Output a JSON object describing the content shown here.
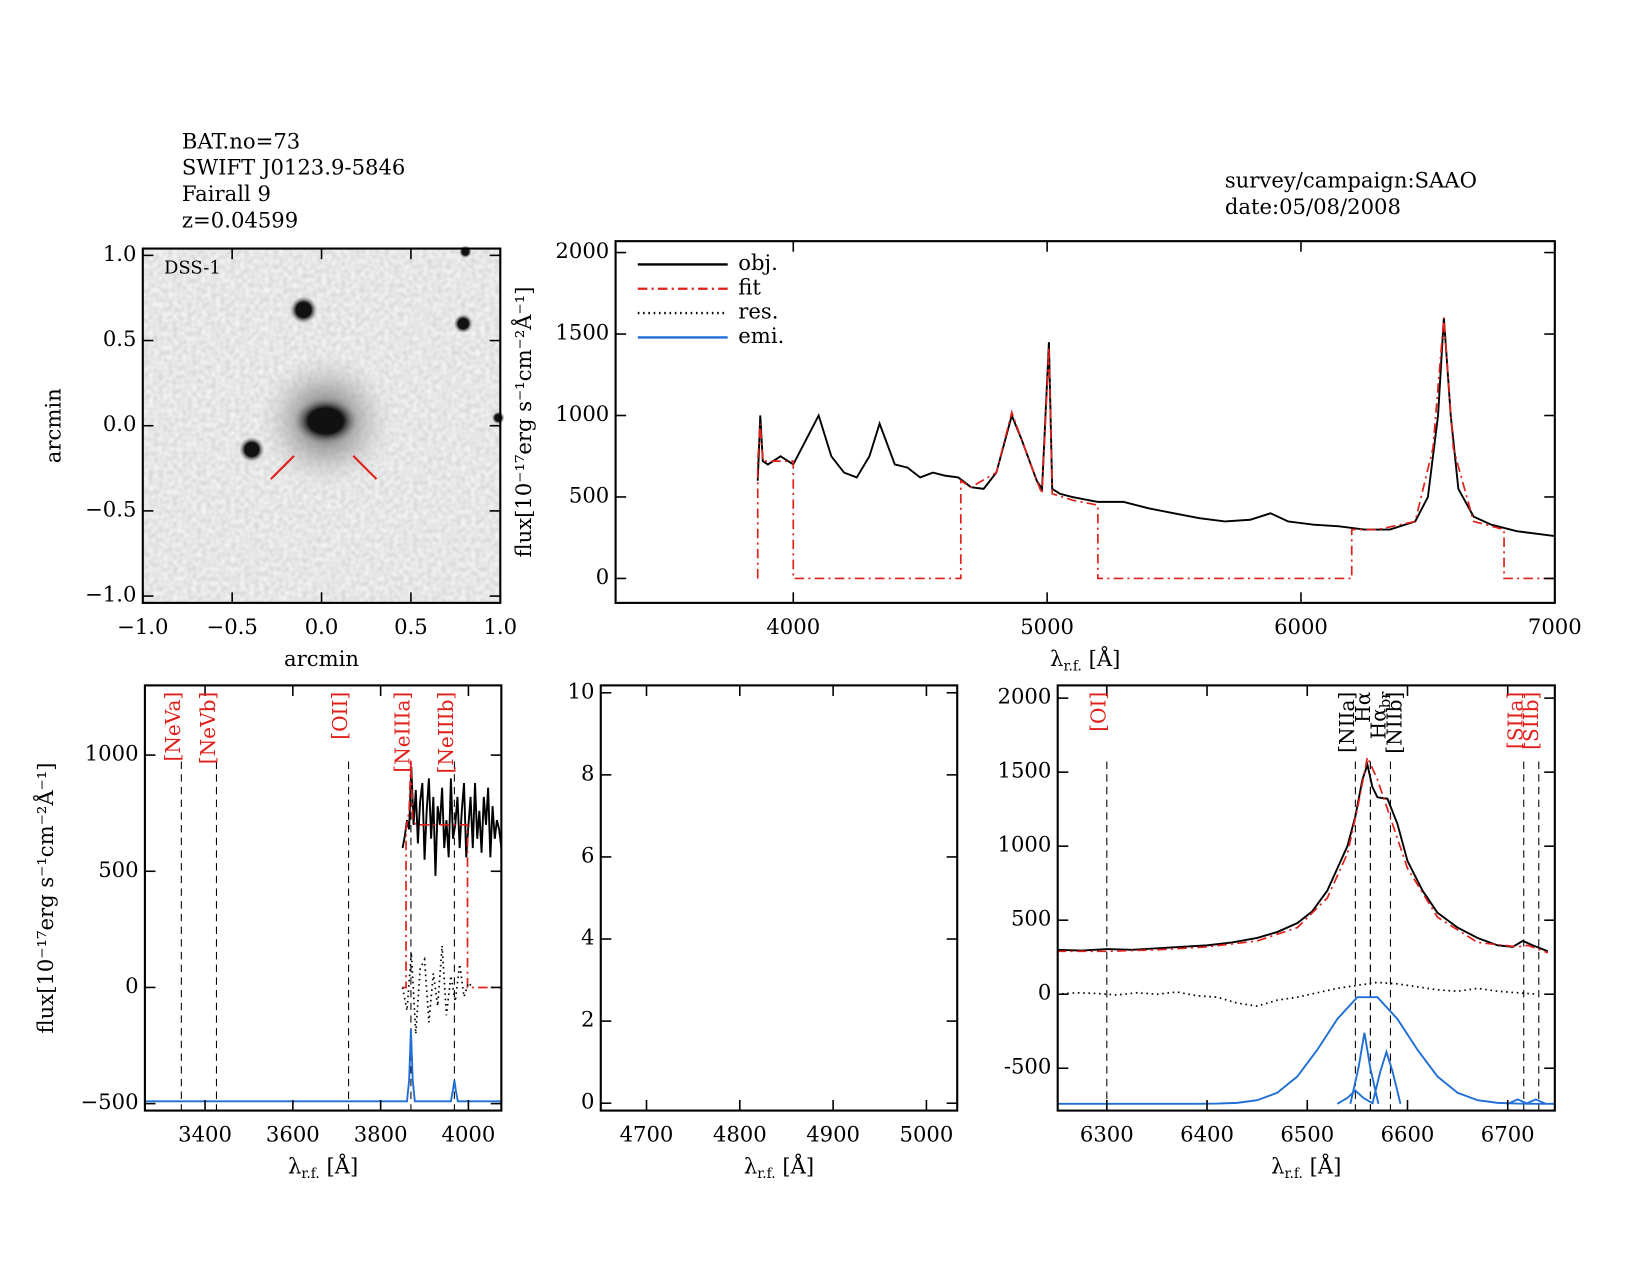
{
  "header": {
    "lines": [
      "BAT.no=73",
      "SWIFT J0123.9-5846",
      "Fairall 9",
      "z=0.04599"
    ],
    "survey": "survey/campaign:SAAO",
    "date": "date:05/08/2008"
  },
  "chart_data": [
    {
      "type": "image",
      "label": "DSS-1",
      "x_label": "arcmin",
      "y_label": "arcmin",
      "xlim": [
        -1,
        1
      ],
      "ylim": [
        -1.04,
        1.04
      ],
      "xticks": [
        {
          "value": -1,
          "label": "−1.0"
        },
        {
          "value": -0.5,
          "label": "−0.5"
        },
        {
          "value": 0,
          "label": "0.0"
        },
        {
          "value": 0.5,
          "label": "0.5"
        },
        {
          "value": 1,
          "label": "1.0"
        }
      ],
      "yticks": [
        {
          "value": -1,
          "label": "−1.0"
        },
        {
          "value": -0.5,
          "label": "−0.5"
        },
        {
          "value": 0,
          "label": "0.0"
        },
        {
          "value": 0.5,
          "label": "0.5"
        },
        {
          "value": 1,
          "label": "1.0"
        }
      ]
    },
    {
      "type": "line",
      "y_label": "flux[10⁻¹⁷erg s⁻¹cm⁻²Å⁻¹]",
      "x_label": "λ",
      "x_label_sub": "r.f.",
      "x_label_unit": "[Å]",
      "xlim": [
        3300,
        7000
      ],
      "ylim": [
        -150,
        2070
      ],
      "xticks": [
        4000,
        5000,
        6000,
        7000
      ],
      "yticks": [
        0,
        500,
        1000,
        1500,
        2000
      ],
      "legend": [
        {
          "name": "obj.",
          "color": "#000000",
          "dash": "solid"
        },
        {
          "name": "fit",
          "color": "#e0201b",
          "dash": "dashdot"
        },
        {
          "name": "res.",
          "color": "#000000",
          "dash": "dot"
        },
        {
          "name": "emi.",
          "color": "#1f6fd6",
          "dash": "solid"
        }
      ],
      "series": [
        {
          "color": "#000000",
          "dash": "solid",
          "x": [
            3860,
            3870,
            3880,
            3900,
            3950,
            4000,
            4050,
            4100,
            4150,
            4200,
            4250,
            4300,
            4340,
            4400,
            4450,
            4500,
            4550,
            4600,
            4650,
            4700,
            4750,
            4800,
            4861,
            4900,
            4959,
            4980,
            5007,
            5020,
            5050,
            5100,
            5200,
            5300,
            5400,
            5500,
            5600,
            5700,
            5800,
            5880,
            5950,
            6050,
            6150,
            6250,
            6350,
            6450,
            6500,
            6540,
            6563,
            6590,
            6620,
            6680,
            6750,
            6850,
            6950,
            7000
          ],
          "values": [
            600,
            1000,
            720,
            700,
            750,
            700,
            850,
            1000,
            750,
            650,
            620,
            750,
            950,
            700,
            680,
            620,
            650,
            630,
            620,
            560,
            550,
            650,
            1000,
            850,
            600,
            550,
            1450,
            550,
            520,
            500,
            470,
            470,
            430,
            400,
            370,
            350,
            360,
            400,
            350,
            330,
            320,
            300,
            300,
            350,
            500,
            1000,
            1600,
            1000,
            550,
            380,
            330,
            290,
            270,
            260
          ]
        },
        {
          "color": "#e0201b",
          "dash": "dashdot",
          "x": [
            3860,
            3860,
            3870,
            3880,
            4000,
            4000,
            4660,
            4660,
            4700,
            4800,
            4861,
            4900,
            4959,
            4980,
            5007,
            5020,
            5100,
            5200,
            5200,
            6200,
            6200,
            6300,
            6450,
            6520,
            6563,
            6600,
            6680,
            6800,
            6800,
            7000
          ],
          "values": [
            0,
            720,
            950,
            720,
            720,
            0,
            0,
            600,
            560,
            650,
            1020,
            850,
            600,
            520,
            1420,
            520,
            480,
            450,
            0,
            0,
            300,
            300,
            350,
            800,
            1600,
            800,
            350,
            300,
            0,
            0
          ]
        }
      ]
    },
    {
      "type": "line",
      "y_label": "flux[10⁻¹⁷erg s⁻¹cm⁻²Å⁻¹]",
      "x_label": "λ",
      "x_label_sub": "r.f.",
      "x_label_unit": "[Å]",
      "xlim": [
        3263,
        4075
      ],
      "ylim": [
        -530,
        1300
      ],
      "xticks": [
        3400,
        3600,
        3800,
        4000
      ],
      "yticks": [
        {
          "value": -500,
          "label": "−500"
        },
        0,
        500,
        1000
      ],
      "lines": [
        {
          "label": "[NeVa]",
          "x": 3346,
          "color": "#e0201b"
        },
        {
          "label": "[NeVb]",
          "x": 3426,
          "color": "#e0201b"
        },
        {
          "label": "[OII]",
          "x": 3727,
          "color": "#e0201b"
        },
        {
          "label": "[NeIIIa]",
          "x": 3869,
          "color": "#e0201b"
        },
        {
          "label": "[NeIIIb]",
          "x": 3968,
          "color": "#e0201b"
        }
      ],
      "series": [
        {
          "color": "#000000",
          "dash": "solid",
          "x": [
            3850,
            3855,
            3860,
            3865,
            3870,
            3875,
            3880,
            3885,
            3890,
            3895,
            3900,
            3905,
            3910,
            3915,
            3920,
            3925,
            3930,
            3935,
            3940,
            3945,
            3950,
            3955,
            3960,
            3965,
            3970,
            3975,
            3980,
            3985,
            3990,
            3995,
            4000,
            4005,
            4010,
            4015,
            4020,
            4025,
            4030,
            4035,
            4040,
            4045,
            4050,
            4055,
            4060,
            4065,
            4070,
            4075
          ],
          "values": [
            600,
            650,
            720,
            680,
            950,
            700,
            850,
            620,
            800,
            880,
            550,
            760,
            900,
            640,
            820,
            480,
            780,
            700,
            860,
            600,
            720,
            560,
            900,
            640,
            700,
            820,
            600,
            760,
            880,
            560,
            700,
            820,
            600,
            880,
            640,
            760,
            580,
            820,
            700,
            860,
            560,
            780,
            640,
            720,
            680,
            600
          ]
        },
        {
          "color": "#e0201b",
          "dash": "dashdot",
          "x": [
            3850,
            3858,
            3858,
            3865,
            3869,
            3873,
            3880,
            3990,
            3998,
            3998,
            4075
          ],
          "values": [
            0,
            0,
            680,
            760,
            980,
            720,
            700,
            700,
            700,
            0,
            0
          ]
        },
        {
          "color": "#000000",
          "dash": "dot",
          "x": [
            3850,
            3860,
            3870,
            3880,
            3890,
            3900,
            3910,
            3920,
            3930,
            3940,
            3950,
            3960,
            3970,
            3980,
            3990,
            4000,
            4010
          ],
          "values": [
            0,
            -100,
            150,
            -200,
            80,
            120,
            -150,
            60,
            -80,
            180,
            -120,
            50,
            -60,
            100,
            -40,
            20,
            0
          ]
        },
        {
          "color": "#1f6fd6",
          "dash": "solid",
          "x": [
            3263,
            3860,
            3865,
            3869,
            3873,
            3878,
            3960,
            3965,
            3968,
            3971,
            3976,
            4075
          ],
          "values": [
            -490,
            -490,
            -400,
            -180,
            -400,
            -490,
            -490,
            -440,
            -400,
            -440,
            -490,
            -490
          ]
        }
      ]
    },
    {
      "type": "line",
      "x_label": "λ",
      "x_label_sub": "r.f.",
      "x_label_unit": "[Å]",
      "xlim": [
        4651,
        5033
      ],
      "ylim": [
        -0.18,
        10.18
      ],
      "xticks": [
        4700,
        4800,
        4900,
        5000
      ],
      "yticks": [
        0,
        2,
        4,
        6,
        8,
        10
      ]
    },
    {
      "type": "line",
      "x_label": "λ",
      "x_label_sub": "r.f.",
      "x_label_unit": "[Å]",
      "xlim": [
        6251,
        6747
      ],
      "ylim": [
        -786,
        2086
      ],
      "xticks": [
        6300,
        6400,
        6500,
        6600,
        6700
      ],
      "yticks": [
        {
          "value": -500,
          "label": "-500"
        },
        0,
        500,
        1000,
        1500,
        2000
      ],
      "lines": [
        {
          "label": "[OI]",
          "x": 6300,
          "color": "#e0201b"
        },
        {
          "label": "[NIIa]",
          "x": 6548,
          "color": "#000000"
        },
        {
          "label": "Hα",
          "x": 6563,
          "color": "#000000"
        },
        {
          "label": "Hα",
          "sub": "br",
          "x": 6563,
          "color": "#000000"
        },
        {
          "label": "[NIIb]",
          "x": 6583,
          "color": "#000000"
        },
        {
          "label": "[SIIa]",
          "x": 6716,
          "color": "#e0201b"
        },
        {
          "label": "[SIIb]",
          "x": 6731,
          "color": "#e0201b"
        }
      ],
      "series": [
        {
          "color": "#000000",
          "dash": "solid",
          "x": [
            6250,
            6275,
            6300,
            6325,
            6350,
            6375,
            6400,
            6425,
            6450,
            6470,
            6490,
            6505,
            6520,
            6530,
            6540,
            6548,
            6555,
            6560,
            6565,
            6570,
            6580,
            6590,
            6600,
            6615,
            6630,
            6650,
            6670,
            6690,
            6705,
            6715,
            6725,
            6740
          ],
          "values": [
            300,
            295,
            305,
            300,
            310,
            320,
            330,
            350,
            380,
            420,
            480,
            560,
            700,
            850,
            1000,
            1200,
            1450,
            1550,
            1400,
            1330,
            1320,
            1150,
            900,
            700,
            550,
            450,
            380,
            330,
            320,
            360,
            330,
            290
          ]
        },
        {
          "color": "#e0201b",
          "dash": "dashdot",
          "x": [
            6250,
            6300,
            6350,
            6400,
            6450,
            6490,
            6520,
            6540,
            6550,
            6560,
            6570,
            6580,
            6600,
            6630,
            6670,
            6710,
            6720,
            6740
          ],
          "values": [
            290,
            290,
            300,
            320,
            360,
            450,
            650,
            950,
            1250,
            1600,
            1450,
            1250,
            850,
            520,
            350,
            320,
            330,
            280
          ]
        },
        {
          "color": "#000000",
          "dash": "dot",
          "x": [
            6250,
            6270,
            6290,
            6310,
            6330,
            6350,
            6370,
            6390,
            6410,
            6430,
            6450,
            6470,
            6490,
            6510,
            6530,
            6550,
            6570,
            6590,
            6610,
            6630,
            6650,
            6670,
            6690,
            6710,
            6730
          ],
          "values": [
            0,
            10,
            5,
            -5,
            10,
            0,
            15,
            -10,
            -20,
            -60,
            -80,
            -40,
            -20,
            10,
            40,
            60,
            80,
            70,
            50,
            30,
            20,
            40,
            20,
            10,
            0
          ]
        },
        {
          "color": "#1f6fd6",
          "dash": "solid",
          "x": [
            6250,
            6390,
            6410,
            6430,
            6450,
            6470,
            6490,
            6510,
            6530,
            6550,
            6570,
            6590,
            6610,
            6630,
            6650,
            6670,
            6690,
            6710,
            6730,
            6747
          ],
          "values": [
            -740,
            -740,
            -739,
            -734,
            -716,
            -666,
            -556,
            -376,
            -167,
            -20,
            -20,
            -167,
            -376,
            -556,
            -666,
            -716,
            -734,
            -739,
            -740,
            -740
          ]
        },
        {
          "color": "#1f6fd6",
          "dash": "solid",
          "x": [
            6530,
            6540,
            6548,
            6556,
            6566
          ],
          "values": [
            -740,
            -700,
            -650,
            -700,
            -740
          ]
        },
        {
          "color": "#1f6fd6",
          "dash": "solid",
          "x": [
            6543,
            6551,
            6557,
            6563,
            6571
          ],
          "values": [
            -740,
            -500,
            -260,
            -500,
            -740
          ]
        },
        {
          "color": "#1f6fd6",
          "dash": "solid",
          "x": [
            6565,
            6573,
            6579,
            6585,
            6593
          ],
          "values": [
            -740,
            -520,
            -390,
            -520,
            -740
          ]
        },
        {
          "color": "#1f6fd6",
          "dash": "solid",
          "x": [
            6700,
            6710,
            6720
          ],
          "values": [
            -740,
            -710,
            -740
          ]
        },
        {
          "color": "#1f6fd6",
          "dash": "solid",
          "x": [
            6718,
            6728,
            6738
          ],
          "values": [
            -740,
            -710,
            -740
          ]
        }
      ]
    }
  ]
}
